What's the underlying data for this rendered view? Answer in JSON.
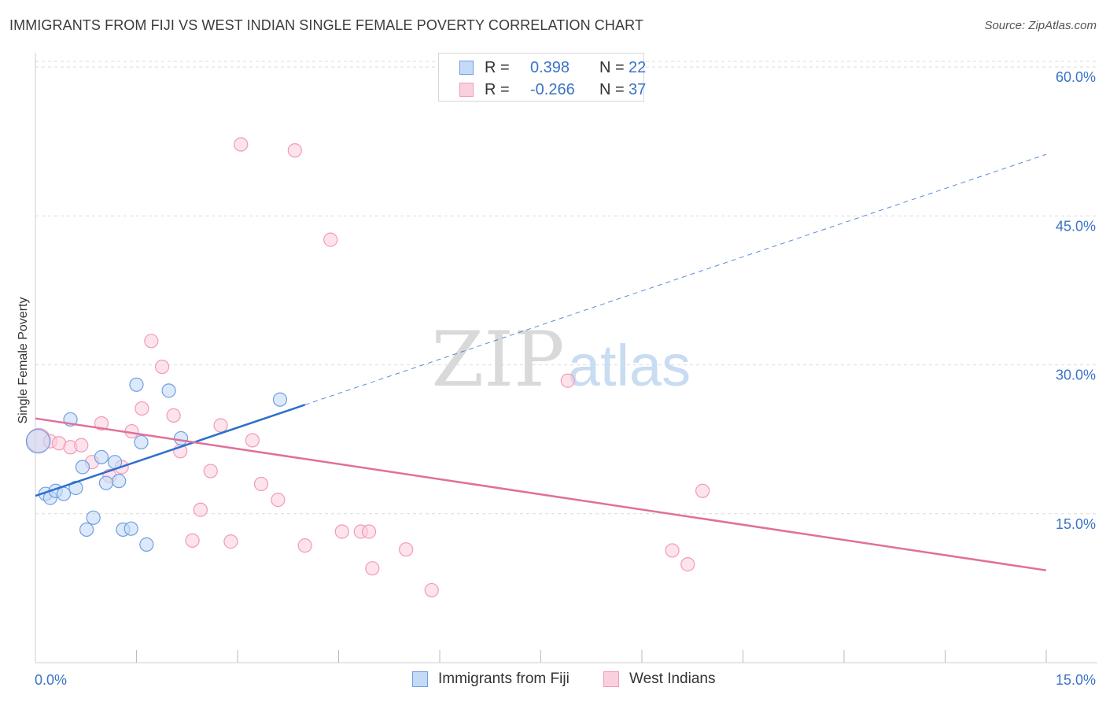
{
  "title": "IMMIGRANTS FROM FIJI VS WEST INDIAN SINGLE FEMALE POVERTY CORRELATION CHART",
  "source": "Source: ZipAtlas.com",
  "watermark": {
    "zip": "ZIP",
    "atlas": "atlas"
  },
  "legend_top": {
    "rows": [
      {
        "r_label": "R =",
        "r_value": "0.398",
        "n_label": "N =",
        "n_value": "22"
      },
      {
        "r_label": "R =",
        "r_value": "-0.266",
        "n_label": "N =",
        "n_value": "37"
      }
    ]
  },
  "chart_data": {
    "type": "scatter",
    "ylabel": "Single Female Poverty",
    "xlim": [
      0,
      15
    ],
    "ylim": [
      0,
      61.2
    ],
    "x_tick_labels": [
      {
        "value": 0,
        "label": "0.0%"
      },
      {
        "value": 15,
        "label": "15.0%"
      }
    ],
    "x_minor_ticks": [
      1.5,
      3.0,
      4.5,
      6.0,
      7.5,
      9.0,
      10.5,
      12.0,
      13.5,
      15.0
    ],
    "y_ticks": [
      {
        "value": 15,
        "label": "15.0%"
      },
      {
        "value": 30,
        "label": "30.0%"
      },
      {
        "value": 45,
        "label": "45.0%"
      },
      {
        "value": 60,
        "label": "60.0%"
      }
    ],
    "grid": true,
    "legend_position": "bottom",
    "series": [
      {
        "name": "Immigrants from Fiji",
        "color": "#6f9fe0",
        "fill": "#c5daf7",
        "line_color": "#2d6fcc",
        "trend": {
          "x0": 0.0,
          "y0": 16.8,
          "x_solid_end": 4.0,
          "x1": 15.0,
          "y1": 51.2
        },
        "points": [
          [
            0.04,
            22.3
          ],
          [
            0.15,
            17.0
          ],
          [
            0.22,
            16.6
          ],
          [
            0.3,
            17.3
          ],
          [
            0.42,
            17.0
          ],
          [
            0.52,
            24.5
          ],
          [
            0.6,
            17.6
          ],
          [
            0.7,
            19.7
          ],
          [
            0.76,
            13.4
          ],
          [
            0.86,
            14.6
          ],
          [
            0.98,
            20.7
          ],
          [
            1.05,
            18.1
          ],
          [
            1.18,
            20.2
          ],
          [
            1.24,
            18.3
          ],
          [
            1.3,
            13.4
          ],
          [
            1.42,
            13.5
          ],
          [
            1.5,
            28.0
          ],
          [
            1.57,
            22.2
          ],
          [
            1.65,
            11.9
          ],
          [
            1.98,
            27.4
          ],
          [
            2.16,
            22.6
          ],
          [
            3.63,
            26.5
          ]
        ]
      },
      {
        "name": "West Indians",
        "color": "#f29ab8",
        "fill": "#fbd0de",
        "line_color": "#e0709a",
        "trend": {
          "x0": 0.0,
          "y0": 24.6,
          "x1": 15.0,
          "y1": 9.3
        },
        "points": [
          [
            0.05,
            22.4
          ],
          [
            0.22,
            22.3
          ],
          [
            0.35,
            22.1
          ],
          [
            0.52,
            21.7
          ],
          [
            0.68,
            21.9
          ],
          [
            0.84,
            20.2
          ],
          [
            0.98,
            24.1
          ],
          [
            1.1,
            18.8
          ],
          [
            1.28,
            19.7
          ],
          [
            1.43,
            23.3
          ],
          [
            1.58,
            25.6
          ],
          [
            1.72,
            32.4
          ],
          [
            1.88,
            29.8
          ],
          [
            2.05,
            24.9
          ],
          [
            2.15,
            21.3
          ],
          [
            2.33,
            12.3
          ],
          [
            2.45,
            15.4
          ],
          [
            2.6,
            19.3
          ],
          [
            2.75,
            23.9
          ],
          [
            2.9,
            12.2
          ],
          [
            3.05,
            52.2
          ],
          [
            3.22,
            22.4
          ],
          [
            3.35,
            18.0
          ],
          [
            3.6,
            16.4
          ],
          [
            3.85,
            51.6
          ],
          [
            4.0,
            11.8
          ],
          [
            4.38,
            42.6
          ],
          [
            4.55,
            13.2
          ],
          [
            4.83,
            13.2
          ],
          [
            4.95,
            13.2
          ],
          [
            5.0,
            9.5
          ],
          [
            5.5,
            11.4
          ],
          [
            5.88,
            7.3
          ],
          [
            7.9,
            28.4
          ],
          [
            9.45,
            11.3
          ],
          [
            9.68,
            9.9
          ],
          [
            9.9,
            17.3
          ]
        ]
      }
    ]
  }
}
